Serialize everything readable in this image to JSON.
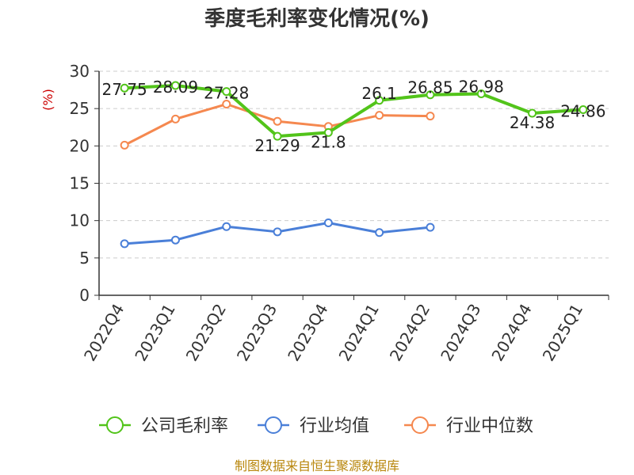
{
  "chart_data": {
    "type": "line",
    "title": "季度毛利率变化情况(%)",
    "ylabel": "(%)",
    "ylabel_color": "#cc0000",
    "categories": [
      "2022Q4",
      "2023Q1",
      "2023Q2",
      "2023Q3",
      "2023Q4",
      "2024Q1",
      "2024Q2",
      "2024Q3",
      "2024Q4",
      "2025Q1"
    ],
    "ylim": [
      0,
      30
    ],
    "yticks": [
      0,
      5,
      10,
      15,
      20,
      25,
      30
    ],
    "grid": true,
    "legend_position": "bottom",
    "series": [
      {
        "name": "公司毛利率",
        "color": "#52c41a",
        "values": [
          27.75,
          28.09,
          27.28,
          21.29,
          21.8,
          26.1,
          26.85,
          26.98,
          24.38,
          24.86
        ],
        "labels": [
          "27.75",
          "28.09",
          "27.28",
          "21.29",
          "21.8",
          "26.1",
          "26.85",
          "26.98",
          "24.38",
          "24.86"
        ]
      },
      {
        "name": "行业均值",
        "color": "#4a7fd8",
        "values": [
          6.9,
          7.4,
          9.2,
          8.5,
          9.7,
          8.4,
          9.1,
          null,
          null,
          null
        ]
      },
      {
        "name": "行业中位数",
        "color": "#f5884f",
        "values": [
          20.1,
          23.6,
          25.6,
          23.3,
          22.6,
          24.1,
          24.0,
          null,
          null,
          null
        ]
      }
    ],
    "source": "制图数据来自恒生聚源数据库",
    "source_color": "#b8860b"
  }
}
